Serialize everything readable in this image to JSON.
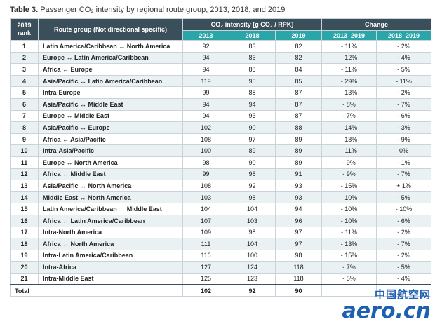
{
  "caption": {
    "label": "Table 3.",
    "text": " Passenger CO₂ intensity by regional route group, 2013, 2018, and 2019"
  },
  "headers": {
    "rank": "2019 rank",
    "route": "Route group (Not directional specific)",
    "co2": "CO₂ intensity [g CO₂ / RPK]",
    "change": "Change",
    "y2013": "2013",
    "y2018": "2018",
    "y2019": "2019",
    "c1319": "2013–2019",
    "c1819": "2018–2019"
  },
  "rows": [
    {
      "rank": "1",
      "route": "Latin America/Caribbean ↔ North America",
      "y2013": "92",
      "y2018": "83",
      "y2019": "82",
      "c1319": "- 11%",
      "c1819": "- 2%"
    },
    {
      "rank": "2",
      "route": "Europe ↔ Latin America/Caribbean",
      "y2013": "94",
      "y2018": "86",
      "y2019": "82",
      "c1319": "- 12%",
      "c1819": "- 4%"
    },
    {
      "rank": "3",
      "route": "Africa ↔ Europe",
      "y2013": "94",
      "y2018": "88",
      "y2019": "84",
      "c1319": "- 11%",
      "c1819": "- 5%"
    },
    {
      "rank": "4",
      "route": "Asia/Pacific ↔ Latin America/Caribbean",
      "y2013": "119",
      "y2018": "95",
      "y2019": "85",
      "c1319": "- 29%",
      "c1819": "- 11%"
    },
    {
      "rank": "5",
      "route": "Intra-Europe",
      "y2013": "99",
      "y2018": "88",
      "y2019": "87",
      "c1319": "- 13%",
      "c1819": "- 2%"
    },
    {
      "rank": "6",
      "route": "Asia/Pacific ↔ Middle East",
      "y2013": "94",
      "y2018": "94",
      "y2019": "87",
      "c1319": "- 8%",
      "c1819": "- 7%"
    },
    {
      "rank": "7",
      "route": "Europe ↔ Middle East",
      "y2013": "94",
      "y2018": "93",
      "y2019": "87",
      "c1319": "- 7%",
      "c1819": "- 6%"
    },
    {
      "rank": "8",
      "route": "Asia/Pacific ↔ Europe",
      "y2013": "102",
      "y2018": "90",
      "y2019": "88",
      "c1319": "- 14%",
      "c1819": "- 3%"
    },
    {
      "rank": "9",
      "route": "Africa ↔ Asia/Pacific",
      "y2013": "108",
      "y2018": "97",
      "y2019": "89",
      "c1319": "- 18%",
      "c1819": "- 9%"
    },
    {
      "rank": "10",
      "route": "Intra-Asia/Pacific",
      "y2013": "100",
      "y2018": "89",
      "y2019": "89",
      "c1319": "- 11%",
      "c1819": "0%"
    },
    {
      "rank": "11",
      "route": "Europe ↔ North America",
      "y2013": "98",
      "y2018": "90",
      "y2019": "89",
      "c1319": "- 9%",
      "c1819": "- 1%"
    },
    {
      "rank": "12",
      "route": "Africa ↔ Middle East",
      "y2013": "99",
      "y2018": "98",
      "y2019": "91",
      "c1319": "- 9%",
      "c1819": "- 7%"
    },
    {
      "rank": "13",
      "route": "Asia/Pacific ↔ North America",
      "y2013": "108",
      "y2018": "92",
      "y2019": "93",
      "c1319": "- 15%",
      "c1819": "+ 1%"
    },
    {
      "rank": "14",
      "route": "Middle East ↔ North America",
      "y2013": "103",
      "y2018": "98",
      "y2019": "93",
      "c1319": "- 10%",
      "c1819": "- 5%"
    },
    {
      "rank": "15",
      "route": "Latin America/Caribbean ↔ Middle East",
      "y2013": "104",
      "y2018": "104",
      "y2019": "94",
      "c1319": "- 10%",
      "c1819": "- 10%"
    },
    {
      "rank": "16",
      "route": "Africa ↔ Latin America/Caribbean",
      "y2013": "107",
      "y2018": "103",
      "y2019": "96",
      "c1319": "- 10%",
      "c1819": "- 6%"
    },
    {
      "rank": "17",
      "route": "Intra-North America",
      "y2013": "109",
      "y2018": "98",
      "y2019": "97",
      "c1319": "- 11%",
      "c1819": "- 2%"
    },
    {
      "rank": "18",
      "route": "Africa ↔ North America",
      "y2013": "111",
      "y2018": "104",
      "y2019": "97",
      "c1319": "- 13%",
      "c1819": "- 7%"
    },
    {
      "rank": "19",
      "route": "Intra-Latin America/Caribbean",
      "y2013": "116",
      "y2018": "100",
      "y2019": "98",
      "c1319": "- 15%",
      "c1819": "- 2%"
    },
    {
      "rank": "20",
      "route": "Intra-Africa",
      "y2013": "127",
      "y2018": "124",
      "y2019": "118",
      "c1319": "- 7%",
      "c1819": "- 5%"
    },
    {
      "rank": "21",
      "route": "Intra-Middle East",
      "y2013": "125",
      "y2018": "123",
      "y2019": "118",
      "c1319": "- 5%",
      "c1819": "- 4%"
    }
  ],
  "total": {
    "label": "Total",
    "y2013": "102",
    "y2018": "92",
    "y2019": "90",
    "c1319": "",
    "c1819": ""
  },
  "watermark": {
    "cn": "中国航空网",
    "en": "aero.cn"
  },
  "colors": {
    "header_dark": "#3b4f5a",
    "header_teal": "#2aa6a8",
    "row_alt": "#e9f1f3",
    "watermark": "#1d5fb0"
  }
}
